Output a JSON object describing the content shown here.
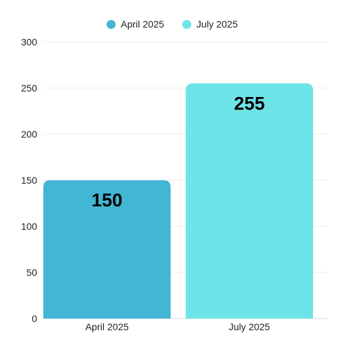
{
  "chart_data": {
    "type": "bar",
    "categories": [
      "April 2025",
      "July 2025"
    ],
    "series": [
      {
        "name": "April 2025",
        "color": "#42b6d4",
        "values": [
          150,
          null
        ]
      },
      {
        "name": "July 2025",
        "color": "#6ce4e8",
        "values": [
          null,
          255
        ]
      }
    ],
    "ylim": [
      0,
      300
    ],
    "yticks": [
      0,
      50,
      100,
      150,
      200,
      250,
      300
    ],
    "data_labels": [
      "150",
      "255"
    ],
    "grid": true,
    "legend_position": "top-center"
  }
}
